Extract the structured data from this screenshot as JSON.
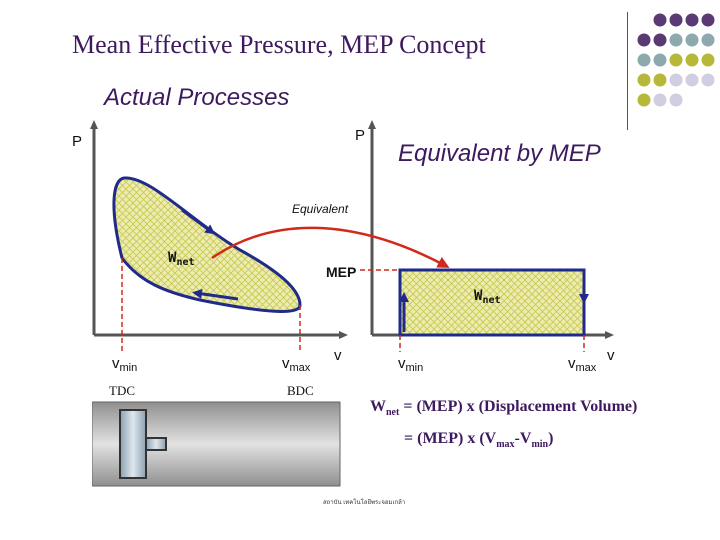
{
  "slide": {
    "title": "Mean Effective Pressure, MEP Concept",
    "subtitle_left": "Actual Processes",
    "subtitle_right": "Equivalent by MEP"
  },
  "left_plot": {
    "y_axis_label": "P",
    "x_axis_label": "v",
    "work_label": "W",
    "work_sub": "net",
    "tick_min": {
      "main": "v",
      "sub": "min"
    },
    "tick_max": {
      "main": "v",
      "sub": "max"
    },
    "tdc_label": "TDC",
    "bdc_label": "BDC"
  },
  "right_plot": {
    "y_axis_label": "P",
    "x_axis_label": "v",
    "work_label": "W",
    "work_sub": "net",
    "mep_label": "MEP",
    "tick_min": {
      "main": "v",
      "sub": "min"
    },
    "tick_max": {
      "main": "v",
      "sub": "max"
    }
  },
  "arrow_label": "Equivalent",
  "equations": {
    "line1": {
      "w": "W",
      "w_sub": "net",
      "text": " = (MEP) x (Displacement Volume)"
    },
    "line2": {
      "prefix": "= (MEP) x (V",
      "sub1": "max",
      "mid": "-V",
      "sub2": "min",
      "suffix": ")"
    }
  },
  "footnote": "สถาบัน เทคโนโลยีพระจอมเกล้า",
  "colors": {
    "title": "#3d1a5e",
    "cycle_outline": "#1f2a8a",
    "fill": "#ecebb0",
    "hatch": "#c9c84e",
    "equivalent_arrow": "#d12a1a",
    "dot_purple": "#5b3a73",
    "dot_teal": "#8ea9ad",
    "dot_olive": "#b7b83a",
    "dot_lavender": "#d0cfe1"
  }
}
